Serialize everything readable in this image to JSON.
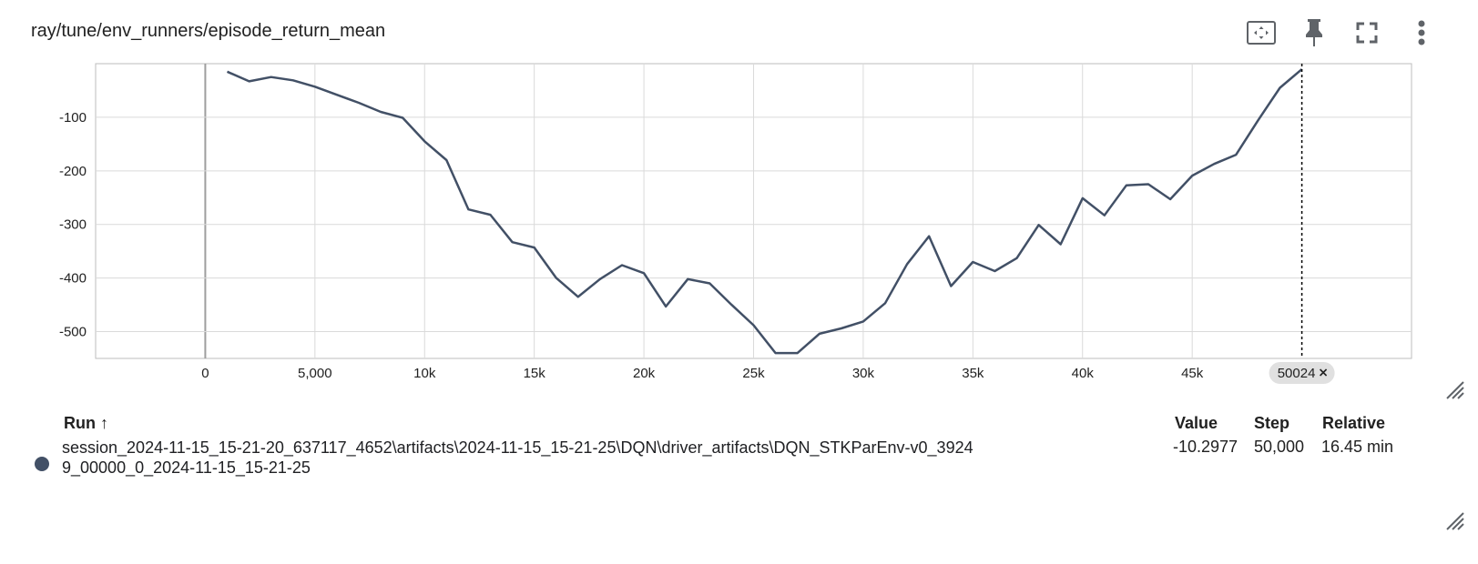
{
  "card": {
    "title": "ray/tune/env_runners/episode_return_mean",
    "toolbar": {
      "icons": [
        "fit-domain-icon",
        "pin-icon",
        "fullscreen-icon",
        "more-vert-icon"
      ]
    }
  },
  "chart_data": {
    "type": "line",
    "title": "ray/tune/env_runners/episode_return_mean",
    "xlabel": "",
    "ylabel": "",
    "xlim": [
      -5000,
      55000
    ],
    "ylim": [
      -550,
      0
    ],
    "x_ticks": [
      "0",
      "5,000",
      "10k",
      "15k",
      "20k",
      "25k",
      "30k",
      "35k",
      "40k",
      "45k"
    ],
    "y_ticks": [
      "-100",
      "-200",
      "-300",
      "-400",
      "-500"
    ],
    "grid": true,
    "hover_step_label": "50024",
    "series": [
      {
        "color": "#425066",
        "x": [
          1000,
          2000,
          3000,
          4000,
          5000,
          6000,
          7000,
          8000,
          9000,
          10000,
          11000,
          12000,
          13000,
          14000,
          15000,
          16000,
          17000,
          18000,
          19000,
          20000,
          21000,
          22000,
          23000,
          24000,
          25000,
          26000,
          27000,
          28000,
          29000,
          30000,
          31000,
          32000,
          33000,
          34000,
          35000,
          36000,
          37000,
          38000,
          39000,
          40000,
          41000,
          42000,
          43000,
          44000,
          45000,
          46000,
          47000,
          48000,
          49000,
          50000
        ],
        "y": [
          -15,
          -33,
          -25,
          -31,
          -43,
          -58,
          -73,
          -90,
          -101,
          -145,
          -180,
          -272,
          -282,
          -333,
          -343,
          -400,
          -435,
          -402,
          -376,
          -391,
          -453,
          -402,
          -410,
          -450,
          -488,
          -540,
          -540,
          -504,
          -494,
          -481,
          -447,
          -374,
          -322,
          -415,
          -370,
          -387,
          -363,
          -301,
          -337,
          -251,
          -283,
          -227,
          -225,
          -253,
          -209,
          -187,
          -170,
          -106,
          -45,
          -10.2977
        ]
      }
    ]
  },
  "table": {
    "headers": {
      "run": "Run ↑",
      "value": "Value",
      "step": "Step",
      "relative": "Relative"
    },
    "rows": [
      {
        "color": "#425066",
        "run": "session_2024-11-15_15-21-20_637117_4652\\artifacts\\2024-11-15_15-21-25\\DQN\\driver_artifacts\\DQN_STKParEnv-v0_39249_00000_0_2024-11-15_15-21-25",
        "value": "-10.2977",
        "step": "50,000",
        "relative": "16.45 min"
      }
    ]
  }
}
